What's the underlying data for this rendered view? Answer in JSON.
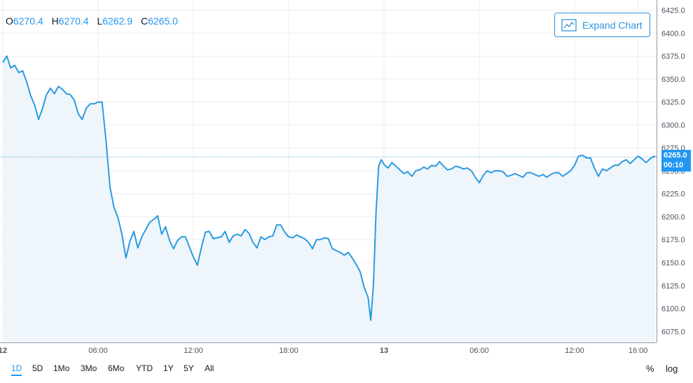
{
  "ohlc": {
    "o_label": "O",
    "o_value": "6270.4",
    "h_label": "H",
    "h_value": "6270.4",
    "l_label": "L",
    "l_value": "6262.9",
    "c_label": "C",
    "c_value": "6265.0"
  },
  "expand_label": "Expand Chart",
  "last_price": {
    "value": "6265.0",
    "countdown": "00:10"
  },
  "ranges": [
    "1D",
    "5D",
    "1Mo",
    "3Mo",
    "6Mo",
    "YTD",
    "1Y",
    "5Y",
    "All"
  ],
  "active_range": "1D",
  "scale_options": {
    "percent": "%",
    "log": "log"
  },
  "colors": {
    "line": "#2d9ae0",
    "fill": "#eef6fc",
    "badge": "#2196f3",
    "grid": "#eceef2"
  },
  "chart_data": {
    "type": "area",
    "title": "",
    "xlabel": "",
    "ylabel": "",
    "x_tick_labels": [
      "12",
      "06:00",
      "12:00",
      "18:00",
      "13",
      "06:00",
      "12:00",
      "16:00"
    ],
    "y_tick_labels": [
      "6075.0",
      "6100.0",
      "6125.0",
      "6150.0",
      "6175.0",
      "6200.0",
      "6225.0",
      "6250.0",
      "6275.0",
      "6300.0",
      "6325.0",
      "6350.0",
      "6375.0",
      "6400.0",
      "6425.0"
    ],
    "ylim": [
      6063,
      6427
    ],
    "grid": true,
    "series": [
      {
        "points": [
          [
            "12 00:00",
            6368
          ],
          [
            "12 00:15",
            6375
          ],
          [
            "12 00:30",
            6362
          ],
          [
            "12 00:45",
            6365
          ],
          [
            "12 01:00",
            6357
          ],
          [
            "12 01:15",
            6359
          ],
          [
            "12 01:30",
            6347
          ],
          [
            "12 01:45",
            6332
          ],
          [
            "12 02:00",
            6322
          ],
          [
            "12 02:15",
            6306
          ],
          [
            "12 02:30",
            6318
          ],
          [
            "12 02:45",
            6333
          ],
          [
            "12 03:00",
            6340
          ],
          [
            "12 03:15",
            6334
          ],
          [
            "12 03:30",
            6342
          ],
          [
            "12 03:45",
            6339
          ],
          [
            "12 04:00",
            6334
          ],
          [
            "12 04:15",
            6333
          ],
          [
            "12 04:30",
            6327
          ],
          [
            "12 04:45",
            6312
          ],
          [
            "12 05:00",
            6306
          ],
          [
            "12 05:15",
            6318
          ],
          [
            "12 05:30",
            6323
          ],
          [
            "12 05:45",
            6323
          ],
          [
            "12 06:00",
            6325
          ],
          [
            "12 06:15",
            6325
          ],
          [
            "12 06:30",
            6283
          ],
          [
            "12 06:45",
            6232
          ],
          [
            "12 07:00",
            6210
          ],
          [
            "12 07:15",
            6199
          ],
          [
            "12 07:30",
            6181
          ],
          [
            "12 07:45",
            6155
          ],
          [
            "12 08:00",
            6173
          ],
          [
            "12 08:15",
            6184
          ],
          [
            "12 08:30",
            6166
          ],
          [
            "12 08:45",
            6178
          ],
          [
            "12 09:00",
            6186
          ],
          [
            "12 09:15",
            6194
          ],
          [
            "12 09:30",
            6197
          ],
          [
            "12 09:45",
            6201
          ],
          [
            "12 10:00",
            6181
          ],
          [
            "12 10:15",
            6189
          ],
          [
            "12 10:30",
            6174
          ],
          [
            "12 10:45",
            6165
          ],
          [
            "12 11:00",
            6174
          ],
          [
            "12 11:15",
            6178
          ],
          [
            "12 11:30",
            6178
          ],
          [
            "12 11:45",
            6167
          ],
          [
            "12 12:00",
            6156
          ],
          [
            "12 12:15",
            6147
          ],
          [
            "12 12:30",
            6166
          ],
          [
            "12 12:45",
            6183
          ],
          [
            "12 13:00",
            6184
          ],
          [
            "12 13:15",
            6176
          ],
          [
            "12 13:30",
            6177
          ],
          [
            "12 13:45",
            6178
          ],
          [
            "12 14:00",
            6184
          ],
          [
            "12 14:15",
            6172
          ],
          [
            "12 14:30",
            6179
          ],
          [
            "12 14:45",
            6181
          ],
          [
            "12 15:00",
            6179
          ],
          [
            "12 15:15",
            6186
          ],
          [
            "12 15:30",
            6182
          ],
          [
            "12 15:45",
            6172
          ],
          [
            "12 16:00",
            6166
          ],
          [
            "12 16:15",
            6178
          ],
          [
            "12 16:30",
            6175
          ],
          [
            "12 16:45",
            6178
          ],
          [
            "12 17:00",
            6179
          ],
          [
            "12 17:15",
            6191
          ],
          [
            "12 17:30",
            6191
          ],
          [
            "12 17:45",
            6183
          ],
          [
            "12 18:00",
            6178
          ],
          [
            "12 18:15",
            6177
          ],
          [
            "12 18:30",
            6180
          ],
          [
            "12 18:45",
            6178
          ],
          [
            "12 19:00",
            6176
          ],
          [
            "12 19:15",
            6172
          ],
          [
            "12 19:30",
            6165
          ],
          [
            "12 19:45",
            6175
          ],
          [
            "12 20:00",
            6175
          ],
          [
            "12 20:15",
            6177
          ],
          [
            "12 20:30",
            6176
          ],
          [
            "12 20:45",
            6165
          ],
          [
            "12 21:00",
            6163
          ],
          [
            "12 21:15",
            6161
          ],
          [
            "12 21:30",
            6158
          ],
          [
            "12 21:45",
            6161
          ],
          [
            "12 22:00",
            6155
          ],
          [
            "12 22:15",
            6148
          ],
          [
            "12 22:30",
            6140
          ],
          [
            "12 22:45",
            6123
          ],
          [
            "12 23:00",
            6112
          ],
          [
            "12 23:10",
            6087
          ],
          [
            "12 23:20",
            6125
          ],
          [
            "12 23:30",
            6206
          ],
          [
            "12 23:40",
            6255
          ],
          [
            "12 23:50",
            6262
          ],
          [
            "13 00:00",
            6257
          ],
          [
            "13 00:15",
            6253
          ],
          [
            "13 00:30",
            6259
          ],
          [
            "13 00:45",
            6255
          ],
          [
            "13 01:00",
            6251
          ],
          [
            "13 01:15",
            6247
          ],
          [
            "13 01:30",
            6249
          ],
          [
            "13 01:45",
            6244
          ],
          [
            "13 02:00",
            6250
          ],
          [
            "13 02:15",
            6251
          ],
          [
            "13 02:30",
            6254
          ],
          [
            "13 02:45",
            6252
          ],
          [
            "13 03:00",
            6256
          ],
          [
            "13 03:15",
            6255
          ],
          [
            "13 03:30",
            6260
          ],
          [
            "13 03:45",
            6255
          ],
          [
            "13 04:00",
            6251
          ],
          [
            "13 04:15",
            6252
          ],
          [
            "13 04:30",
            6255
          ],
          [
            "13 04:45",
            6254
          ],
          [
            "13 05:00",
            6252
          ],
          [
            "13 05:15",
            6253
          ],
          [
            "13 05:30",
            6250
          ],
          [
            "13 05:45",
            6243
          ],
          [
            "13 06:00",
            6237
          ],
          [
            "13 06:15",
            6245
          ],
          [
            "13 06:30",
            6250
          ],
          [
            "13 06:45",
            6248
          ],
          [
            "13 07:00",
            6250
          ],
          [
            "13 07:15",
            6250
          ],
          [
            "13 07:30",
            6249
          ],
          [
            "13 07:45",
            6244
          ],
          [
            "13 08:00",
            6245
          ],
          [
            "13 08:15",
            6247
          ],
          [
            "13 08:30",
            6245
          ],
          [
            "13 08:45",
            6243
          ],
          [
            "13 09:00",
            6248
          ],
          [
            "13 09:15",
            6248
          ],
          [
            "13 09:30",
            6246
          ],
          [
            "13 09:45",
            6244
          ],
          [
            "13 10:00",
            6246
          ],
          [
            "13 10:15",
            6243
          ],
          [
            "13 10:30",
            6246
          ],
          [
            "13 10:45",
            6248
          ],
          [
            "13 11:00",
            6248
          ],
          [
            "13 11:15",
            6244
          ],
          [
            "13 11:30",
            6247
          ],
          [
            "13 11:45",
            6250
          ],
          [
            "13 12:00",
            6256
          ],
          [
            "13 12:15",
            6266
          ],
          [
            "13 12:30",
            6267
          ],
          [
            "13 12:45",
            6264
          ],
          [
            "13 13:00",
            6264
          ],
          [
            "13 13:15",
            6253
          ],
          [
            "13 13:30",
            6244
          ],
          [
            "13 13:45",
            6252
          ],
          [
            "13 14:00",
            6250
          ],
          [
            "13 14:15",
            6253
          ],
          [
            "13 14:30",
            6256
          ],
          [
            "13 14:45",
            6256
          ],
          [
            "13 15:00",
            6260
          ],
          [
            "13 15:15",
            6262
          ],
          [
            "13 15:30",
            6258
          ],
          [
            "13 15:45",
            6262
          ],
          [
            "13 16:00",
            6266
          ],
          [
            "13 16:15",
            6263
          ],
          [
            "13 16:30",
            6259
          ],
          [
            "13 16:45",
            6263
          ],
          [
            "13 17:00",
            6266
          ],
          [
            "13 17:05",
            6265
          ]
        ]
      }
    ]
  }
}
